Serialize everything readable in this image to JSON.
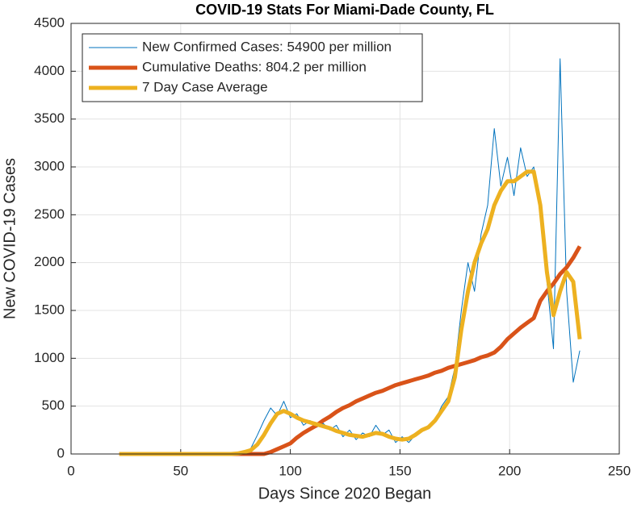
{
  "chart_data": {
    "type": "line",
    "title": "COVID-19 Stats For Miami-Dade County, FL",
    "x_label": "Days Since 2020 Began",
    "y_label": "New COVID-19 Cases",
    "x": [
      22,
      25,
      28,
      31,
      34,
      37,
      40,
      43,
      46,
      49,
      52,
      55,
      58,
      61,
      64,
      67,
      70,
      73,
      76,
      79,
      82,
      85,
      88,
      91,
      94,
      97,
      100,
      103,
      106,
      109,
      112,
      115,
      118,
      121,
      124,
      127,
      130,
      133,
      136,
      139,
      142,
      145,
      148,
      151,
      154,
      157,
      160,
      163,
      166,
      169,
      172,
      175,
      178,
      181,
      184,
      187,
      190,
      193,
      196,
      199,
      202,
      205,
      208,
      211,
      214,
      217,
      220,
      223,
      226,
      229,
      232
    ],
    "series": [
      {
        "name": "New Confirmed Cases: 54900 per million",
        "color": "#0072BD",
        "width": 1,
        "values": [
          0,
          0,
          0,
          0,
          0,
          0,
          0,
          0,
          0,
          0,
          0,
          0,
          0,
          0,
          0,
          0,
          0,
          0,
          2,
          10,
          60,
          200,
          350,
          480,
          400,
          550,
          380,
          420,
          300,
          350,
          280,
          320,
          250,
          300,
          180,
          250,
          150,
          220,
          180,
          300,
          200,
          250,
          120,
          180,
          120,
          200,
          250,
          300,
          350,
          500,
          600,
          900,
          1500,
          2000,
          1700,
          2300,
          2600,
          3400,
          2800,
          3100,
          2700,
          3200,
          2900,
          3000,
          2500,
          1800,
          1100,
          4130,
          1700,
          750,
          1080
        ]
      },
      {
        "name": "Cumulative Deaths: 804.2 per million",
        "color": "#D95319",
        "width": 5,
        "values": [
          0,
          0,
          0,
          0,
          0,
          0,
          0,
          0,
          0,
          0,
          0,
          0,
          0,
          0,
          0,
          0,
          0,
          0,
          0,
          0,
          0,
          0,
          0,
          20,
          50,
          80,
          110,
          170,
          220,
          260,
          300,
          350,
          390,
          440,
          480,
          510,
          550,
          580,
          610,
          640,
          660,
          690,
          720,
          740,
          760,
          780,
          800,
          820,
          850,
          870,
          900,
          920,
          940,
          960,
          980,
          1010,
          1030,
          1060,
          1120,
          1200,
          1260,
          1320,
          1370,
          1420,
          1600,
          1700,
          1780,
          1880,
          1950,
          2050,
          2170
        ]
      },
      {
        "name": "7 Day Case Average",
        "color": "#EDB120",
        "width": 5,
        "values": [
          0,
          0,
          0,
          0,
          0,
          0,
          0,
          0,
          0,
          0,
          0,
          0,
          0,
          0,
          0,
          0,
          0,
          0,
          5,
          20,
          40,
          100,
          200,
          320,
          420,
          450,
          420,
          380,
          350,
          330,
          310,
          290,
          270,
          240,
          220,
          200,
          190,
          180,
          200,
          220,
          210,
          180,
          160,
          150,
          160,
          200,
          250,
          280,
          350,
          450,
          550,
          800,
          1300,
          1700,
          2000,
          2200,
          2350,
          2600,
          2750,
          2850,
          2850,
          2900,
          2950,
          2950,
          2600,
          1900,
          1450,
          1700,
          1900,
          1800,
          1200
        ]
      }
    ],
    "xlim": [
      0,
      250
    ],
    "xticks": [
      0,
      50,
      100,
      150,
      200,
      250
    ],
    "ylim": [
      0,
      4500
    ],
    "yticks": [
      0,
      500,
      1000,
      1500,
      2000,
      2500,
      3000,
      3500,
      4000,
      4500
    ],
    "grid": true,
    "legend": "top-left"
  }
}
